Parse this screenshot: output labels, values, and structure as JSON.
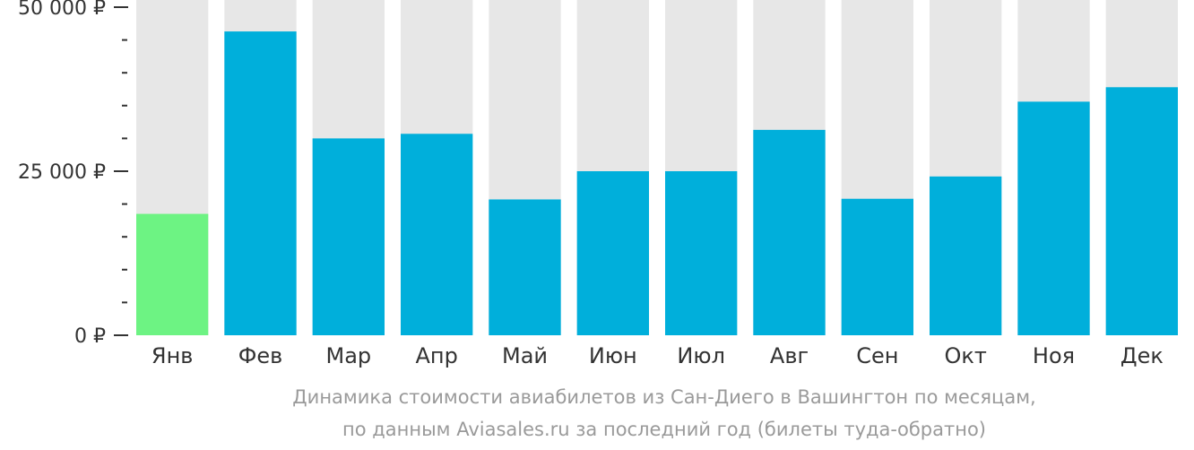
{
  "chart_data": {
    "type": "bar",
    "categories": [
      "Янв",
      "Фев",
      "Мар",
      "Апр",
      "Май",
      "Июн",
      "Июл",
      "Авг",
      "Сен",
      "Окт",
      "Ноя",
      "Дек"
    ],
    "values": [
      18500,
      46300,
      30000,
      30700,
      20700,
      25000,
      25000,
      31300,
      20800,
      24200,
      35600,
      37800
    ],
    "ylim": [
      0,
      50000
    ],
    "yticks": [
      {
        "value": 0,
        "label": "0 ₽"
      },
      {
        "value": 25000,
        "label": "25 000 ₽"
      },
      {
        "value": 50000,
        "label": "50 000 ₽"
      }
    ],
    "minor_tick_step": 5000,
    "highlight_index": 0,
    "colors": {
      "bar": "#00afdb",
      "highlight": "#6df383",
      "track": "#e7e7e7",
      "axis": "#333333"
    }
  },
  "caption": {
    "line1": "Динамика стоимости авиабилетов из Сан-Диего в Вашингтон по месяцам,",
    "line2": "по данным Aviasales.ru за последний год (билеты туда-обратно)"
  }
}
